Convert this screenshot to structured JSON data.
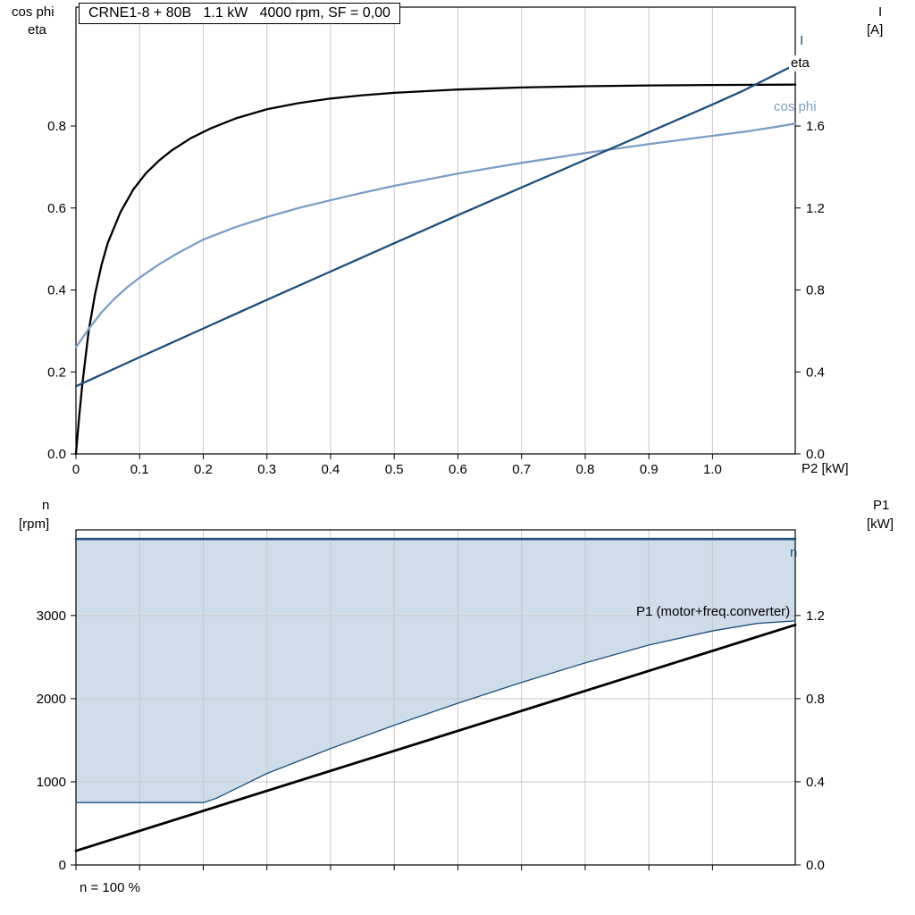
{
  "colors": {
    "curve_black": "#000000",
    "curve_dark_blue": "#1f4e79",
    "curve_light_blue": "#7d9ec6",
    "grid": "#c9c9c9",
    "area_fill": "#cfdce9",
    "frame": "#000000"
  },
  "chart_data": [
    {
      "type": "line",
      "title": "CRNE1-8 + 80B   1.1 kW   4000 rpm, SF = 0,00",
      "x_label": "P2 [kW]",
      "left_axis_label": [
        "cos phi",
        "eta"
      ],
      "right_axis_label": [
        "I",
        "[A]"
      ],
      "xlim": [
        0,
        1.13
      ],
      "left_ylim": [
        0,
        1.09
      ],
      "right_ylim": [
        0,
        2.18
      ],
      "h_grid": false,
      "x_ticks": [
        {
          "v": 0,
          "label": "0"
        },
        {
          "v": 0.1,
          "label": "0.1"
        },
        {
          "v": 0.2,
          "label": "0.2"
        },
        {
          "v": 0.3,
          "label": "0.3"
        },
        {
          "v": 0.4,
          "label": "0.4"
        },
        {
          "v": 0.5,
          "label": "0.5"
        },
        {
          "v": 0.6,
          "label": "0.6"
        },
        {
          "v": 0.7,
          "label": "0.7"
        },
        {
          "v": 0.8,
          "label": "0.8"
        },
        {
          "v": 0.9,
          "label": "0.9"
        },
        {
          "v": 1.0,
          "label": "1.0"
        }
      ],
      "left_ticks": [
        {
          "v": 0,
          "label": "0.0"
        },
        {
          "v": 0.2,
          "label": "0.2"
        },
        {
          "v": 0.4,
          "label": "0.4"
        },
        {
          "v": 0.6,
          "label": "0.6"
        },
        {
          "v": 0.8,
          "label": "0.8"
        }
      ],
      "right_ticks": [
        {
          "v": 0,
          "label": "0.0"
        },
        {
          "v": 0.4,
          "label": "0.4"
        },
        {
          "v": 0.8,
          "label": "0.8"
        },
        {
          "v": 1.2,
          "label": "1.2"
        },
        {
          "v": 1.6,
          "label": "1.6"
        }
      ],
      "series": [
        {
          "name": "eta",
          "axis": "left",
          "color": "#000000",
          "width": 2.3,
          "points": [
            [
              0,
              0
            ],
            [
              0.005,
              0.09
            ],
            [
              0.01,
              0.17
            ],
            [
              0.02,
              0.3
            ],
            [
              0.03,
              0.39
            ],
            [
              0.04,
              0.46
            ],
            [
              0.05,
              0.515
            ],
            [
              0.07,
              0.59
            ],
            [
              0.09,
              0.645
            ],
            [
              0.11,
              0.685
            ],
            [
              0.13,
              0.715
            ],
            [
              0.15,
              0.74
            ],
            [
              0.18,
              0.77
            ],
            [
              0.21,
              0.793
            ],
            [
              0.25,
              0.818
            ],
            [
              0.3,
              0.841
            ],
            [
              0.35,
              0.856
            ],
            [
              0.4,
              0.867
            ],
            [
              0.45,
              0.875
            ],
            [
              0.5,
              0.881
            ],
            [
              0.55,
              0.885
            ],
            [
              0.6,
              0.889
            ],
            [
              0.7,
              0.894
            ],
            [
              0.8,
              0.897
            ],
            [
              0.9,
              0.899
            ],
            [
              1.0,
              0.9
            ],
            [
              1.13,
              0.901
            ]
          ]
        },
        {
          "name": "cos phi",
          "axis": "left",
          "color": "#7d9ec6",
          "width": 2.3,
          "points": [
            [
              0,
              0.26
            ],
            [
              0.02,
              0.305
            ],
            [
              0.04,
              0.345
            ],
            [
              0.06,
              0.378
            ],
            [
              0.08,
              0.406
            ],
            [
              0.1,
              0.43
            ],
            [
              0.13,
              0.462
            ],
            [
              0.16,
              0.49
            ],
            [
              0.2,
              0.523
            ],
            [
              0.25,
              0.553
            ],
            [
              0.3,
              0.578
            ],
            [
              0.35,
              0.6
            ],
            [
              0.4,
              0.619
            ],
            [
              0.45,
              0.637
            ],
            [
              0.5,
              0.654
            ],
            [
              0.55,
              0.669
            ],
            [
              0.6,
              0.684
            ],
            [
              0.65,
              0.697
            ],
            [
              0.7,
              0.71
            ],
            [
              0.75,
              0.722
            ],
            [
              0.8,
              0.734
            ],
            [
              0.85,
              0.745
            ],
            [
              0.9,
              0.756
            ],
            [
              0.95,
              0.766
            ],
            [
              1.0,
              0.776
            ],
            [
              1.05,
              0.786
            ],
            [
              1.1,
              0.798
            ],
            [
              1.13,
              0.806
            ]
          ]
        },
        {
          "name": "I",
          "axis": "right",
          "color": "#1f4e79",
          "width": 2.3,
          "points": [
            [
              0,
              0.33
            ],
            [
              0.1,
              0.472
            ],
            [
              0.2,
              0.612
            ],
            [
              0.3,
              0.752
            ],
            [
              0.4,
              0.89
            ],
            [
              0.5,
              1.028
            ],
            [
              0.6,
              1.165
            ],
            [
              0.7,
              1.3
            ],
            [
              0.8,
              1.435
            ],
            [
              0.9,
              1.57
            ],
            [
              1.0,
              1.705
            ],
            [
              1.05,
              1.775
            ],
            [
              1.13,
              1.9
            ]
          ]
        }
      ]
    },
    {
      "type": "line",
      "note": "n = 100 %",
      "left_axis_label": [
        "n",
        "[rpm]"
      ],
      "right_axis_label": [
        "P1",
        "[kW]"
      ],
      "xlim": [
        0,
        1.13
      ],
      "left_ylim": [
        0,
        4030
      ],
      "right_ylim": [
        0,
        1.612
      ],
      "h_grid": true,
      "fill_between": {
        "lower": "n range",
        "upper": "n",
        "color": "#cfdce9"
      },
      "x_ticks": [
        {
          "v": 0
        },
        {
          "v": 0.1
        },
        {
          "v": 0.2
        },
        {
          "v": 0.3
        },
        {
          "v": 0.4
        },
        {
          "v": 0.5
        },
        {
          "v": 0.6
        },
        {
          "v": 0.7
        },
        {
          "v": 0.8
        },
        {
          "v": 0.9
        },
        {
          "v": 1.0
        }
      ],
      "left_ticks": [
        {
          "v": 0,
          "label": "0"
        },
        {
          "v": 1000,
          "label": "1000"
        },
        {
          "v": 2000,
          "label": "2000"
        },
        {
          "v": 3000,
          "label": "3000"
        }
      ],
      "right_ticks": [
        {
          "v": 0,
          "label": "0.0"
        },
        {
          "v": 0.4,
          "label": "0.4"
        },
        {
          "v": 0.8,
          "label": "0.8"
        },
        {
          "v": 1.2,
          "label": "1.2"
        }
      ],
      "series": [
        {
          "name": "n range",
          "axis": "left",
          "color": "#1f4e79",
          "width": 1.3,
          "points": [
            [
              0,
              750
            ],
            [
              0.2,
              750
            ],
            [
              0.22,
              800
            ],
            [
              0.3,
              1100
            ],
            [
              0.4,
              1400
            ],
            [
              0.5,
              1680
            ],
            [
              0.6,
              1945
            ],
            [
              0.7,
              2195
            ],
            [
              0.8,
              2430
            ],
            [
              0.9,
              2645
            ],
            [
              1.0,
              2815
            ],
            [
              1.07,
              2905
            ],
            [
              1.13,
              2935
            ]
          ]
        },
        {
          "name": "n",
          "axis": "left",
          "color": "#1f4e79",
          "width": 2.6,
          "points": [
            [
              0,
              3920
            ],
            [
              1.13,
              3920
            ]
          ]
        },
        {
          "name": "P1 (motor+freq.converter)",
          "axis": "right",
          "color": "#000000",
          "width": 2.8,
          "points": [
            [
              0,
              0.068
            ],
            [
              1.13,
              1.155
            ]
          ]
        }
      ]
    }
  ]
}
